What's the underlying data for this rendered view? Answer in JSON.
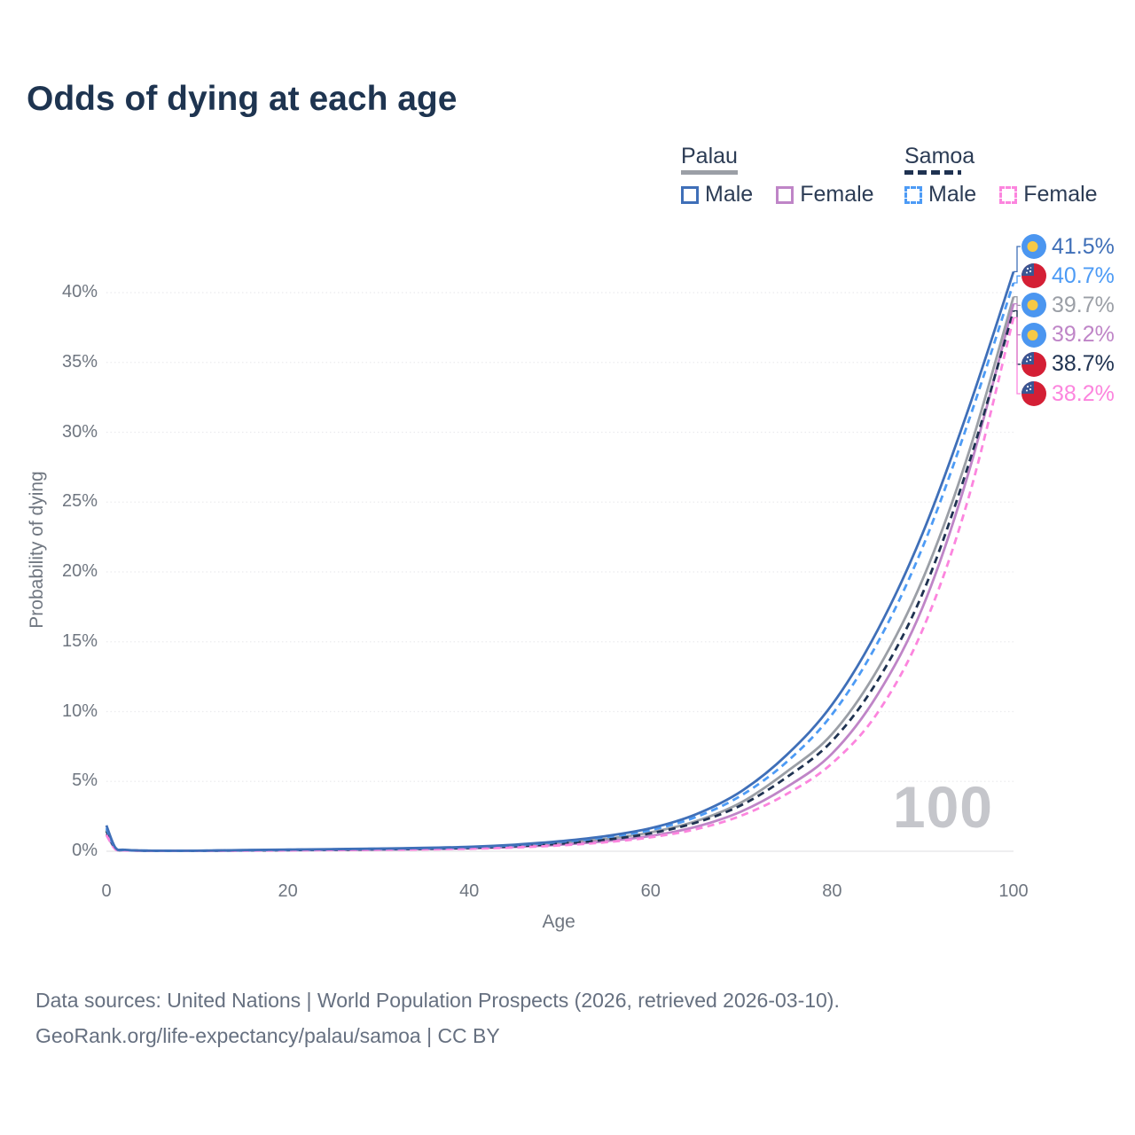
{
  "title": "Odds of dying at each age",
  "legend": {
    "palau": {
      "label": "Palau",
      "male_label": "Male",
      "female_label": "Female",
      "style": "solid",
      "underline_color": "#9b9fa6"
    },
    "samoa": {
      "label": "Samoa",
      "male_label": "Male",
      "female_label": "Female",
      "style": "dashed",
      "underline_color": "#1f3251"
    }
  },
  "chart_data": {
    "type": "line",
    "title": "Odds of dying at each age",
    "xlabel": "Age",
    "ylabel": "Probability of dying",
    "xlim": [
      0,
      100
    ],
    "ylim": [
      0,
      44
    ],
    "x_ticks": [
      0,
      20,
      40,
      60,
      80,
      100
    ],
    "y_ticks": [
      0,
      5,
      10,
      15,
      20,
      25,
      30,
      35,
      40
    ],
    "y_tick_suffix": "%",
    "grid": "horizontal",
    "legend_position": "top-right",
    "hover_age": "100",
    "x": [
      0,
      1,
      2,
      5,
      10,
      15,
      20,
      25,
      30,
      35,
      40,
      45,
      50,
      55,
      60,
      65,
      70,
      75,
      80,
      85,
      90,
      95,
      100
    ],
    "series": [
      {
        "name": "Palau Male",
        "country": "palau",
        "sex": "male",
        "color": "#3f6fb8",
        "dash": false,
        "flag": "palau",
        "values": [
          1.85,
          0.25,
          0.1,
          0.04,
          0.04,
          0.08,
          0.12,
          0.15,
          0.19,
          0.24,
          0.32,
          0.47,
          0.72,
          1.08,
          1.65,
          2.65,
          4.3,
          6.9,
          10.5,
          15.8,
          22.8,
          31.6,
          41.5
        ],
        "end_label": "41.5%"
      },
      {
        "name": "Samoa Male",
        "country": "samoa",
        "sex": "male",
        "color": "#4d9bf5",
        "dash": true,
        "flag": "samoa",
        "values": [
          1.65,
          0.22,
          0.09,
          0.04,
          0.04,
          0.07,
          0.11,
          0.14,
          0.18,
          0.22,
          0.3,
          0.44,
          0.67,
          1.0,
          1.52,
          2.45,
          4.0,
          6.4,
          9.8,
          14.9,
          21.8,
          30.7,
          40.7
        ],
        "end_label": "40.7%"
      },
      {
        "name": "Palau Both sexes",
        "country": "palau",
        "sex": "both",
        "color": "#9b9fa6",
        "dash": false,
        "flag": "palau",
        "values": [
          1.55,
          0.2,
          0.08,
          0.03,
          0.03,
          0.06,
          0.09,
          0.12,
          0.15,
          0.19,
          0.26,
          0.38,
          0.58,
          0.88,
          1.35,
          2.15,
          3.5,
          5.7,
          8.4,
          13.0,
          19.5,
          28.4,
          39.7
        ],
        "end_label": "39.7%"
      },
      {
        "name": "Palau Female",
        "country": "palau",
        "sex": "female",
        "color": "#bf85c7",
        "dash": false,
        "flag": "palau",
        "values": [
          1.25,
          0.16,
          0.07,
          0.03,
          0.03,
          0.05,
          0.07,
          0.09,
          0.12,
          0.15,
          0.21,
          0.31,
          0.47,
          0.72,
          1.1,
          1.75,
          2.85,
          4.6,
          7.0,
          11.2,
          17.5,
          27.0,
          39.2
        ],
        "end_label": "39.2%"
      },
      {
        "name": "Samoa Both sexes",
        "country": "samoa",
        "sex": "both",
        "color": "#1f3251",
        "dash": true,
        "flag": "samoa",
        "values": [
          1.45,
          0.18,
          0.08,
          0.03,
          0.03,
          0.06,
          0.08,
          0.11,
          0.14,
          0.18,
          0.24,
          0.36,
          0.54,
          0.82,
          1.28,
          2.05,
          3.3,
          5.3,
          7.9,
          12.2,
          18.5,
          27.6,
          38.7
        ],
        "end_label": "38.7%"
      },
      {
        "name": "Samoa Female",
        "country": "samoa",
        "sex": "female",
        "color": "#fc85de",
        "dash": true,
        "flag": "samoa",
        "values": [
          1.15,
          0.14,
          0.06,
          0.03,
          0.03,
          0.04,
          0.06,
          0.08,
          0.1,
          0.13,
          0.18,
          0.27,
          0.42,
          0.64,
          1.0,
          1.58,
          2.55,
          4.1,
          6.3,
          9.9,
          15.9,
          25.2,
          38.2
        ],
        "end_label": "38.2%"
      }
    ],
    "watermark": "100",
    "flag_colors": {
      "palau_blue": "#4b96f0",
      "palau_yellow": "#f6c945",
      "samoa_red": "#d41f35",
      "samoa_navy": "#3a5693",
      "samoa_star": "#ffffff"
    }
  },
  "footer": {
    "line1": "Data sources: United Nations | World Population Prospects (2026, retrieved 2026-03-10).",
    "line2": "GeoRank.org/life-expectancy/palau/samoa | CC BY"
  }
}
